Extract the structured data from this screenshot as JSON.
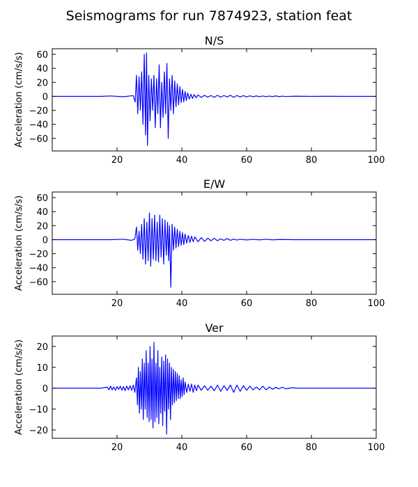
{
  "figure": {
    "title": "Seismograms for run 7874923, station feat"
  },
  "chart_data": [
    {
      "type": "line",
      "title": "N/S",
      "xlabel": "",
      "ylabel": "Acceleration (cm/s/s)",
      "xlim": [
        0,
        100
      ],
      "ylim": [
        -78,
        68
      ],
      "xticks": [
        20,
        40,
        60,
        80,
        100
      ],
      "yticks": [
        -60,
        -40,
        -20,
        0,
        20,
        40,
        60
      ],
      "grid": false,
      "color": "#0000ff",
      "series": [
        {
          "x": [
            0,
            15,
            18,
            22,
            25,
            25.6,
            26,
            26.4,
            26.8,
            27.2,
            27.6,
            28,
            28.4,
            28.8,
            29.1,
            29.4,
            29.8,
            30.2,
            30.6,
            31,
            31.4,
            31.8,
            32.2,
            32.6,
            33,
            33.4,
            33.8,
            34.2,
            34.6,
            35,
            35.4,
            35.8,
            36.2,
            36.6,
            37,
            37.4,
            37.8,
            38.2,
            38.6,
            39,
            39.4,
            39.8,
            40.2,
            40.6,
            41,
            41.4,
            41.8,
            42.3,
            42.8,
            43.3,
            43.8,
            44.4,
            45,
            46,
            47,
            48,
            49,
            50,
            51,
            52,
            53,
            54,
            55,
            56,
            57,
            58,
            59,
            60,
            61,
            62,
            63,
            64,
            65,
            66,
            67,
            68,
            69,
            70,
            71,
            72,
            75,
            80,
            85,
            90,
            95,
            100
          ],
          "y": [
            0,
            0,
            0.5,
            -0.5,
            1,
            -8,
            30,
            -25,
            28,
            -20,
            35,
            -40,
            60,
            -55,
            62,
            -70,
            30,
            -35,
            25,
            -20,
            30,
            -45,
            25,
            -25,
            45,
            -45,
            20,
            -30,
            35,
            -25,
            47,
            -60,
            25,
            -20,
            30,
            -25,
            22,
            -15,
            18,
            -12,
            14,
            -9,
            10,
            -8,
            7,
            -6,
            5,
            -4,
            3,
            -3,
            2.5,
            -2,
            2,
            -1.5,
            1.5,
            -1.2,
            1.2,
            -1.5,
            1.5,
            -1.2,
            1.2,
            -1,
            1.5,
            -1.5,
            1.2,
            -1,
            1,
            -0.8,
            0.8,
            -0.6,
            0.6,
            -0.5,
            0.5,
            -0.4,
            0.4,
            -0.3,
            0.6,
            -0.4,
            0.3,
            -0.2,
            0.2,
            0,
            0.1,
            0,
            0,
            0
          ]
        }
      ]
    },
    {
      "type": "line",
      "title": "E/W",
      "xlabel": "",
      "ylabel": "Acceleration (cm/s/s)",
      "xlim": [
        0,
        100
      ],
      "ylim": [
        -78,
        68
      ],
      "xticks": [
        20,
        40,
        60,
        80,
        100
      ],
      "yticks": [
        -60,
        -40,
        -20,
        0,
        20,
        40,
        60
      ],
      "grid": false,
      "color": "#0000ff",
      "series": [
        {
          "x": [
            0,
            18,
            22,
            24.5,
            25.5,
            26,
            26.4,
            26.8,
            27.2,
            27.6,
            28,
            28.4,
            28.8,
            29.2,
            29.6,
            30,
            30.4,
            30.8,
            31.2,
            31.6,
            32,
            32.4,
            32.8,
            33.2,
            33.6,
            34,
            34.4,
            34.8,
            35.2,
            35.6,
            35.9,
            36.2,
            36.6,
            37,
            37.4,
            37.8,
            38.2,
            38.6,
            39,
            39.4,
            39.8,
            40.2,
            40.6,
            41,
            41.5,
            42,
            42.5,
            43,
            43.5,
            44,
            45,
            46,
            47,
            48,
            49,
            50,
            51,
            52,
            53,
            54,
            55,
            56,
            57,
            58,
            60,
            62,
            64,
            66,
            68,
            70,
            75,
            80,
            90,
            100
          ],
          "y": [
            0,
            0,
            0.5,
            -1,
            1,
            18,
            -15,
            12,
            -20,
            22,
            -28,
            30,
            -35,
            25,
            -30,
            38,
            -38,
            30,
            -28,
            35,
            -30,
            25,
            -32,
            35,
            -25,
            30,
            -35,
            28,
            -22,
            25,
            -30,
            20,
            -68,
            22,
            -15,
            18,
            -12,
            15,
            -10,
            12,
            -8,
            10,
            -7,
            8,
            -5,
            6,
            -4,
            5,
            -3,
            4,
            -3,
            3,
            -2.5,
            2,
            -1.5,
            2,
            -1.5,
            1.2,
            -1,
            1.5,
            -1,
            0.8,
            -0.6,
            0.5,
            -0.4,
            0.4,
            -0.3,
            0.5,
            -0.3,
            0.2,
            0,
            0,
            0,
            0
          ]
        }
      ]
    },
    {
      "type": "line",
      "title": "Ver",
      "xlabel": "",
      "ylabel": "Acceleration (cm/s/s)",
      "xlim": [
        0,
        100
      ],
      "ylim": [
        -24,
        25
      ],
      "xticks": [
        20,
        40,
        60,
        80,
        100
      ],
      "yticks": [
        -20,
        -10,
        0,
        10,
        20
      ],
      "grid": false,
      "color": "#0000ff",
      "series": [
        {
          "x": [
            0,
            10,
            15,
            17,
            17.5,
            18,
            18.5,
            19,
            19.5,
            20,
            20.5,
            21,
            21.5,
            22,
            22.5,
            23,
            23.5,
            24,
            24.5,
            25,
            25.5,
            26,
            26.3,
            26.6,
            26.9,
            27.2,
            27.5,
            27.8,
            28.1,
            28.4,
            28.7,
            29,
            29.3,
            29.6,
            29.9,
            30.2,
            30.5,
            30.8,
            31.1,
            31.4,
            31.7,
            32,
            32.3,
            32.6,
            32.9,
            33.2,
            33.5,
            33.8,
            34.1,
            34.4,
            34.7,
            35,
            35.3,
            35.6,
            35.9,
            36.2,
            36.5,
            36.8,
            37.1,
            37.4,
            37.7,
            38,
            38.3,
            38.6,
            38.9,
            39.2,
            39.5,
            39.8,
            40.1,
            40.4,
            40.7,
            41,
            41.5,
            42,
            42.5,
            43,
            43.5,
            44,
            44.5,
            45,
            46,
            47,
            48,
            49,
            50,
            51,
            52,
            53,
            54,
            55,
            56,
            57,
            58,
            59,
            60,
            61,
            62,
            63,
            64,
            65,
            66,
            67,
            68,
            69,
            70,
            71,
            72,
            74,
            76,
            80,
            85,
            90,
            95,
            100
          ],
          "y": [
            0,
            0,
            0,
            0.5,
            -0.8,
            1,
            -0.8,
            0.6,
            -1,
            0.8,
            -0.6,
            1,
            -1,
            0.8,
            -1.2,
            1,
            -0.8,
            1.2,
            -1,
            1.5,
            -2,
            5,
            -8,
            10,
            -12,
            8,
            -10,
            14,
            -15,
            12,
            -10,
            18,
            -14,
            12,
            -16,
            20,
            -15,
            14,
            -19,
            22,
            -16,
            12,
            -14,
            18,
            -17,
            10,
            -12,
            15,
            -18,
            13,
            -11,
            16,
            -22,
            14,
            -10,
            12,
            -15,
            10,
            -8,
            9,
            -7,
            8,
            -6,
            7,
            -5,
            6,
            -5,
            4,
            -4,
            5,
            -3,
            3,
            -2,
            2,
            -1.5,
            2,
            -2,
            1.5,
            -1.2,
            1.5,
            -1,
            1.2,
            -1,
            1,
            -1.2,
            1.5,
            -1.5,
            1.2,
            -1,
            1.5,
            -2,
            1.5,
            -1.5,
            1.2,
            -1,
            1,
            -0.8,
            0.6,
            -0.8,
            1,
            -0.8,
            0.6,
            -0.5,
            0.4,
            -0.3,
            0.5,
            -0.3,
            0.2,
            0,
            0,
            0,
            0,
            0,
            0
          ]
        }
      ]
    }
  ]
}
